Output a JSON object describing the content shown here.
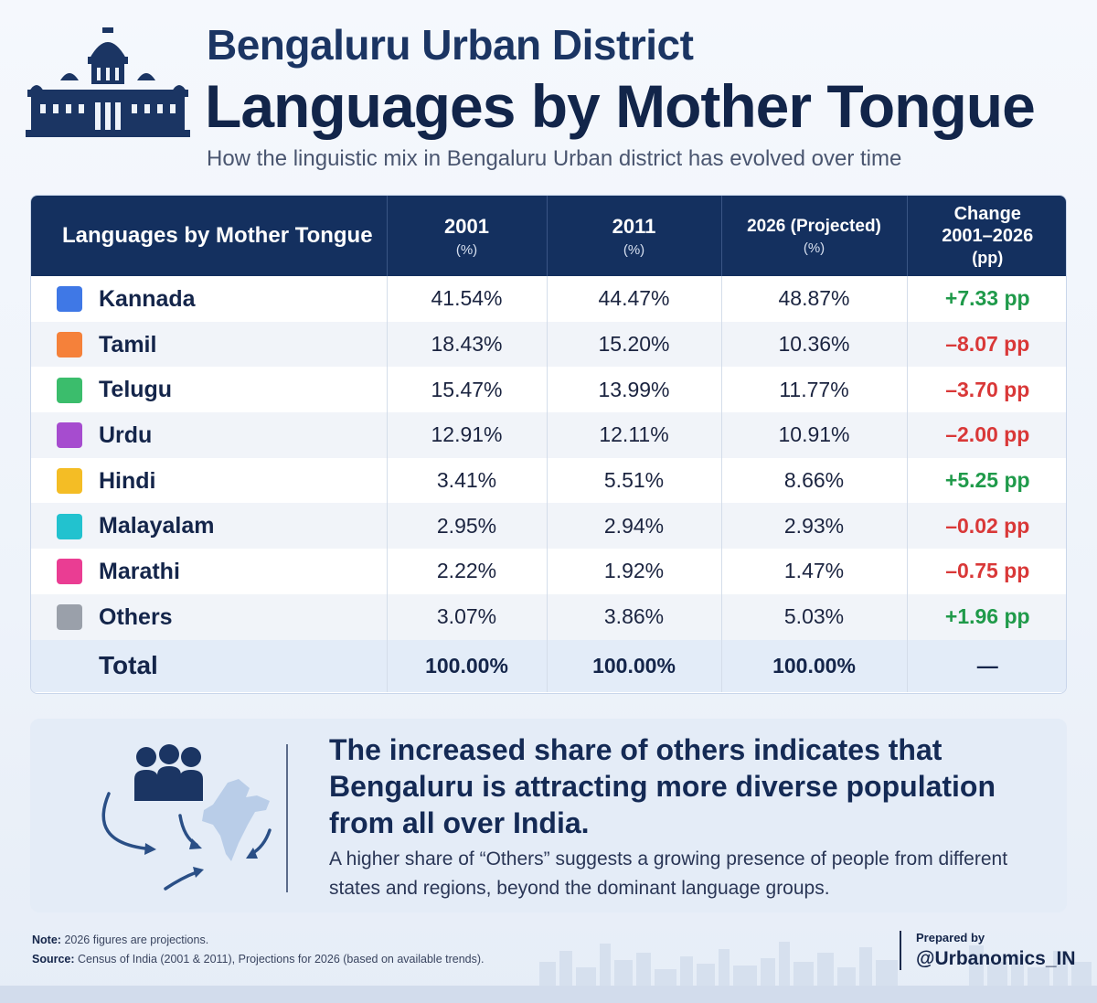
{
  "header": {
    "title_line1": "Bengaluru Urban District",
    "title_line2": "Languages by Mother Tongue",
    "subtitle": "How the linguistic mix in Bengaluru Urban district has evolved over time"
  },
  "table": {
    "columns": {
      "language": "Languages by Mother Tongue",
      "y2001": "2001",
      "y2001_unit": "(%)",
      "y2011": "2011",
      "y2011_unit": "(%)",
      "y2026": "2026 (Projected)",
      "y2026_unit": "(%)",
      "change_1": "Change",
      "change_2": "2001–2026",
      "change_3": "(pp)"
    },
    "rows": [
      {
        "language": "Kannada",
        "color": "#3f78e6",
        "v2001": "41.54%",
        "v2011": "44.47%",
        "v2026": "48.87%",
        "change": "+7.33 pp",
        "trend": "pos"
      },
      {
        "language": "Tamil",
        "color": "#f5813a",
        "v2001": "18.43%",
        "v2011": "15.20%",
        "v2026": "10.36%",
        "change": "–8.07 pp",
        "trend": "neg"
      },
      {
        "language": "Telugu",
        "color": "#3bbd6c",
        "v2001": "15.47%",
        "v2011": "13.99%",
        "v2026": "11.77%",
        "change": "–3.70 pp",
        "trend": "neg"
      },
      {
        "language": "Urdu",
        "color": "#a64ccf",
        "v2001": "12.91%",
        "v2011": "12.11%",
        "v2026": "10.91%",
        "change": "–2.00 pp",
        "trend": "neg"
      },
      {
        "language": "Hindi",
        "color": "#f4bd25",
        "v2001": "3.41%",
        "v2011": "5.51%",
        "v2026": "8.66%",
        "change": "+5.25 pp",
        "trend": "pos"
      },
      {
        "language": "Malayalam",
        "color": "#22c2cf",
        "v2001": "2.95%",
        "v2011": "2.94%",
        "v2026": "2.93%",
        "change": "–0.02 pp",
        "trend": "neg"
      },
      {
        "language": "Marathi",
        "color": "#ea3d93",
        "v2001": "2.22%",
        "v2011": "1.92%",
        "v2026": "1.47%",
        "change": "–0.75 pp",
        "trend": "neg"
      },
      {
        "language": "Others",
        "color": "#9aa0aa",
        "v2001": "3.07%",
        "v2011": "3.86%",
        "v2026": "5.03%",
        "change": "+1.96 pp",
        "trend": "pos"
      }
    ],
    "total": {
      "label": "Total",
      "v2001": "100.00%",
      "v2011": "100.00%",
      "v2026": "100.00%",
      "change": "—"
    }
  },
  "insight": {
    "headline": "The increased share of others indicates that Bengaluru is attracting more diverse population from all over India.",
    "body": "A higher share of “Others” suggests a growing presence of people from different states and regions, beyond the dominant language groups."
  },
  "footer": {
    "note_label": "Note:",
    "note_text": "2026 figures are projections.",
    "source_label": "Source:",
    "source_text": "Census of India (2001 & 2011), Projections for 2026 (based on available trends).",
    "prepared_label": "Prepared by",
    "prepared_handle": "@Urbanomics_IN"
  },
  "colors": {
    "header_bg": "#14305f",
    "positive": "#1f9a4a",
    "negative": "#d93838"
  }
}
